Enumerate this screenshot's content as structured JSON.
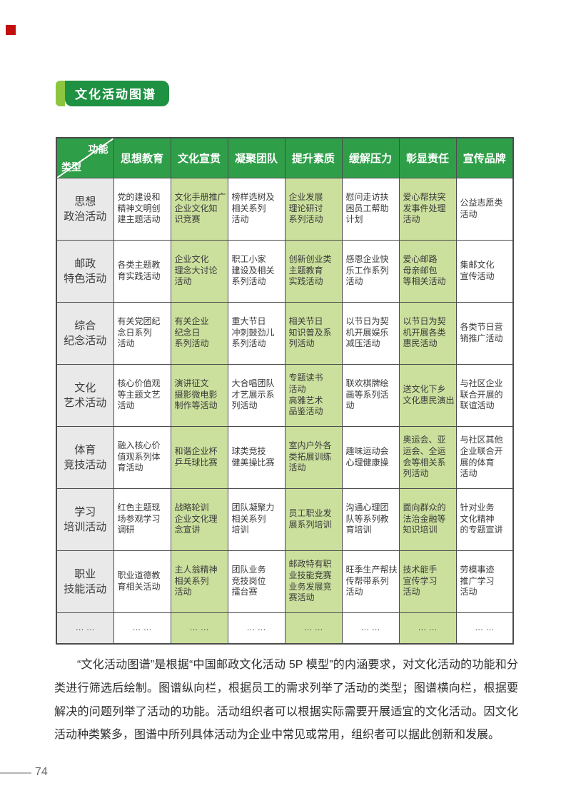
{
  "header": {
    "badge_label": "文化活动图谱"
  },
  "colors": {
    "header_green": "#2f9e48",
    "cell_green": "#cbe09d",
    "badge_green": "#1f9143",
    "badge_accent_green": "#8cc63e",
    "row_header_gray": "#e9e9e9",
    "corner_mark_red": "#c40f0f"
  },
  "table": {
    "corner": {
      "top_right": "功能",
      "bottom_left": "类型"
    },
    "columns": [
      "思想教育",
      "文化宣贯",
      "凝聚团队",
      "提升素质",
      "缓解压力",
      "彰显责任",
      "宣传品牌"
    ],
    "rows": [
      {
        "type": "思想\n政治活动",
        "cells": [
          "党的建设和\n精神文明创\n建主题活动",
          "文化手册推广\n企业文化知\n识竞赛",
          "榜样选树及\n相关系列\n活动",
          "企业发展\n理论研讨\n系列活动",
          "慰问走访扶\n困员工帮助\n计划",
          "爱心帮扶突\n发事件处理\n活动",
          "公益志愿类\n活动"
        ]
      },
      {
        "type": "邮政\n特色活动",
        "cells": [
          "各类主题教\n育实践活动",
          "企业文化\n理念大讨论\n活动",
          "职工小家\n建设及相关\n系列活动",
          "创新创业类\n主题教育\n实践活动",
          "感恩企业快\n乐工作系列\n活动",
          "爱心邮路\n母亲邮包\n等相关活动",
          "集邮文化\n宣传活动"
        ]
      },
      {
        "type": "综合\n纪念活动",
        "cells": [
          "有关党团纪\n念日系列\n活动",
          "有关企业\n纪念日\n系列活动",
          "重大节日\n冲刺鼓劲儿\n系列活动",
          "相关节日\n知识普及系\n列活动",
          "以节日为契\n机开展娱乐\n减压活动",
          "以节日为契\n机开展各类\n惠民活动",
          "各类节日营\n销推广活动"
        ]
      },
      {
        "type": "文化\n艺术活动",
        "cells": [
          "核心价值观\n等主题文艺\n活动",
          "演讲征文\n摄影微电影\n制作等活动",
          "大合唱团队\n才艺展示系\n列活动",
          "专题读书\n活动\n高雅艺术\n品鉴活动",
          "联欢棋牌绘\n画等系列活\n动",
          "送文化下乡\n文化惠民演出",
          "与社区企业\n联合开展的\n联谊活动"
        ]
      },
      {
        "type": "体育\n竞技活动",
        "cells": [
          "融入核心价\n值观系列体\n育活动",
          "和谐企业杯\n乒乓球比赛",
          "球类竞技\n健美操比赛",
          "室内户外各\n类拓展训练\n活动",
          "趣味运动会\n心理健康操",
          "奥运会、亚\n运会、全运\n会等相关系\n列活动",
          "与社区其他\n企业联合开\n展的体育\n活动"
        ]
      },
      {
        "type": "学习\n培训活动",
        "cells": [
          "红色主题现\n场参观学习\n调研",
          "战略轮训\n企业文化理\n念宣讲",
          "团队凝聚力\n相关系列\n培训",
          "员工职业发\n展系列培训",
          "沟通心理团\n队等系列教\n育培训",
          "面向群众的\n法治金融等\n知识培训",
          "针对业务\n文化精神\n的专题宣讲"
        ]
      },
      {
        "type": "职业\n技能活动",
        "cells": [
          "职业道德教\n育相关活动",
          "主人翁精神\n相关系列\n活动",
          "团队业务\n竞技岗位\n擂台赛",
          "邮政特有职\n业技能竞赛\n业务发展竞\n赛活动",
          "旺季生产帮扶\n传帮带系列\n活动",
          "技术能手\n宣传学习\n活动",
          "劳模事迹\n推广学习\n活动"
        ]
      },
      {
        "type": "… …",
        "cells": [
          "… …",
          "… …",
          "… …",
          "… …",
          "… …",
          "… …",
          "… …"
        ]
      }
    ]
  },
  "paragraph": "“文化活动图谱”是根据“中国邮政文化活动 5P 模型”的内涵要求，对文化活动的功能和分类进行筛选后绘制。图谱纵向栏，根据员工的需求列举了活动的类型；图谱横向栏，根据要解决的问题列举了活动的功能。活动组织者可以根据实际需要开展适宜的文化活动。因文化活动种类繁多，图谱中所列具体活动为企业中常见或常用，组织者可以据此创新和发展。",
  "footer": {
    "page_number": "74"
  }
}
